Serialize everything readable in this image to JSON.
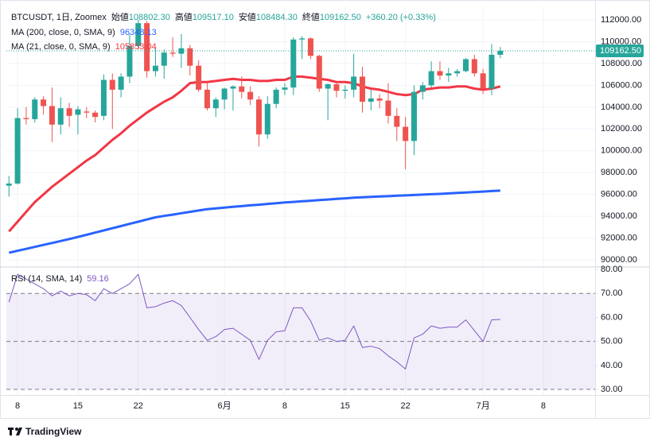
{
  "chart_data": [
    {
      "type": "candlestick",
      "title": "BTCUSDT, 1日, Zoomex",
      "info": [
        {
          "label": "始値",
          "value": "108802.30"
        },
        {
          "label": "高値",
          "value": "109517.10"
        },
        {
          "label": "安値",
          "value": "108484.30"
        },
        {
          "label": "終値",
          "value": "109162.50"
        }
      ],
      "change": "+360.20 (+0.33%)",
      "open": [
        96800,
        97000,
        103000,
        102900,
        104700,
        104100,
        102400,
        103900,
        103300,
        103600,
        103500,
        103200,
        106500,
        105600,
        106800,
        109600,
        111700,
        107300,
        107800,
        109000,
        108900,
        109400,
        107800,
        105600,
        103900,
        104700,
        105700,
        105900,
        105400,
        104700,
        101500,
        104300,
        105600,
        105800,
        110200,
        110300,
        108700,
        105700,
        106100,
        105500,
        105600,
        106800,
        104500,
        104800,
        104600,
        103200,
        102200,
        100900,
        105400,
        106000,
        107300,
        106900,
        107100,
        107300,
        108400,
        107100,
        105700,
        108802.3
      ],
      "high": [
        97700,
        103900,
        104000,
        104900,
        105000,
        105800,
        104900,
        104400,
        104100,
        104000,
        103700,
        107000,
        107100,
        107100,
        110700,
        112000,
        111900,
        109500,
        109300,
        110400,
        110700,
        109700,
        108300,
        106300,
        104900,
        105800,
        106000,
        106800,
        105900,
        105000,
        105000,
        105800,
        106200,
        110400,
        110500,
        110400,
        108800,
        106200,
        106300,
        106000,
        108900,
        107700,
        105600,
        105200,
        106200,
        103900,
        103100,
        106000,
        106300,
        108200,
        108200,
        107600,
        107500,
        108500,
        108800,
        107500,
        109800,
        109517.1
      ],
      "low": [
        95800,
        96900,
        102400,
        102600,
        103300,
        100800,
        101500,
        102200,
        101500,
        103000,
        102600,
        102800,
        102000,
        104900,
        106200,
        109300,
        106700,
        106800,
        106600,
        108600,
        107600,
        106900,
        105400,
        103700,
        103100,
        103800,
        103700,
        104800,
        104200,
        100400,
        101100,
        103900,
        105100,
        105100,
        108400,
        108400,
        105400,
        102800,
        104900,
        104800,
        104900,
        103500,
        103700,
        103900,
        102500,
        100900,
        98300,
        99600,
        104700,
        105800,
        106500,
        106300,
        106800,
        107200,
        106800,
        105200,
        105100,
        108484.3
      ],
      "close": [
        97000,
        103000,
        102900,
        104700,
        104100,
        102400,
        103900,
        103200,
        103800,
        103500,
        103100,
        106500,
        105600,
        106800,
        109600,
        111700,
        107300,
        107800,
        109000,
        108900,
        109400,
        107800,
        105600,
        103900,
        104700,
        105700,
        105900,
        105400,
        104700,
        101500,
        104300,
        105600,
        105800,
        110200,
        110300,
        108700,
        105700,
        106100,
        105500,
        105600,
        106800,
        104500,
        104800,
        104600,
        103200,
        102200,
        100900,
        105400,
        106000,
        107300,
        106900,
        107100,
        107300,
        108400,
        107100,
        105700,
        108800,
        109162.5
      ],
      "up_color": "#26a69a",
      "down_color": "#ef5350",
      "series": [
        {
          "name": "MA (200, close, 0, SMA, 9)",
          "value_label": "96348.13",
          "color": "#2962ff",
          "values": [
            90650,
            90830,
            91010,
            91190,
            91370,
            91550,
            91730,
            91910,
            92100,
            92300,
            92500,
            92700,
            92900,
            93100,
            93300,
            93500,
            93700,
            93900,
            94030,
            94150,
            94280,
            94400,
            94530,
            94650,
            94720,
            94790,
            94860,
            94930,
            95000,
            95060,
            95130,
            95200,
            95260,
            95310,
            95370,
            95420,
            95480,
            95530,
            95590,
            95640,
            95700,
            95740,
            95770,
            95810,
            95840,
            95880,
            95910,
            95950,
            95980,
            96020,
            96050,
            96090,
            96140,
            96180,
            96220,
            96260,
            96310,
            96350
          ]
        },
        {
          "name": "MA (21, close, 0, SMA, 9)",
          "value_label": "105853.04",
          "color": "#f23645",
          "values": [
            92600,
            93500,
            94400,
            95300,
            96000,
            96700,
            97300,
            97900,
            98500,
            99100,
            99600,
            100300,
            101000,
            101600,
            102300,
            102900,
            103500,
            104000,
            104500,
            104900,
            105500,
            106200,
            106300,
            106300,
            106400,
            106500,
            106600,
            106500,
            106500,
            106400,
            106400,
            106500,
            106500,
            106800,
            106800,
            106700,
            106600,
            106500,
            106300,
            106300,
            106200,
            105900,
            105700,
            105600,
            105400,
            105200,
            105100,
            105200,
            105600,
            105700,
            105800,
            105800,
            105900,
            105900,
            105700,
            105600,
            105700,
            105900
          ]
        }
      ],
      "last_price_label": "109162.50",
      "xlim": [
        -0.3,
        68
      ],
      "xticks": [
        {
          "value": 1,
          "label": "8"
        },
        {
          "value": 8,
          "label": "15"
        },
        {
          "value": 15,
          "label": "22"
        },
        {
          "value": 25,
          "label": "6月"
        },
        {
          "value": 32,
          "label": "8"
        },
        {
          "value": 39,
          "label": "15"
        },
        {
          "value": 46,
          "label": "22"
        },
        {
          "value": 55,
          "label": "7月"
        },
        {
          "value": 62,
          "label": "8"
        }
      ],
      "ylim": [
        89420,
        113240
      ],
      "yticks": [
        {
          "value": 90000,
          "label": "90000.00"
        },
        {
          "value": 92000,
          "label": "92000.00"
        },
        {
          "value": 94000,
          "label": "94000.00"
        },
        {
          "value": 96000,
          "label": "96000.00"
        },
        {
          "value": 98000,
          "label": "98000.00"
        },
        {
          "value": 100000,
          "label": "100000.00"
        },
        {
          "value": 102000,
          "label": "102000.00"
        },
        {
          "value": 104000,
          "label": "104000.00"
        },
        {
          "value": 106000,
          "label": "106000.00"
        },
        {
          "value": 108000,
          "label": "108000.00"
        },
        {
          "value": 110000,
          "label": "110000.00"
        },
        {
          "value": 112000,
          "label": "112000.00"
        }
      ],
      "grid": true
    },
    {
      "type": "line",
      "series": [
        {
          "name": "RSI (14, SMA, 14)",
          "value_label": "59.16",
          "color": "#7e57c2",
          "values": [
            66.4,
            78,
            76,
            74,
            72,
            69,
            71,
            69,
            70,
            69.5,
            67,
            72,
            70,
            72,
            74,
            78,
            64,
            64.5,
            66,
            67,
            65,
            60,
            55,
            50.5,
            52,
            55,
            55.5,
            53,
            50.5,
            42.5,
            50.5,
            54,
            54.5,
            64,
            64,
            58.5,
            50.5,
            51.5,
            50,
            50.5,
            56.5,
            47.5,
            48,
            47,
            44,
            41.5,
            38.5,
            51.5,
            53,
            56.5,
            55.5,
            56,
            56,
            59,
            54.5,
            50,
            59,
            59.16
          ]
        }
      ],
      "levels": [
        70,
        50,
        30
      ],
      "ylim": [
        27.7,
        80.7
      ],
      "yticks": [
        {
          "value": 30,
          "label": "30.00"
        },
        {
          "value": 40,
          "label": "40.00"
        },
        {
          "value": 50,
          "label": "50.00"
        },
        {
          "value": 60,
          "label": "60.00"
        },
        {
          "value": 70,
          "label": "70.00"
        },
        {
          "value": 80,
          "label": "80.00"
        }
      ],
      "grid": true
    }
  ],
  "brand": "TradingView"
}
